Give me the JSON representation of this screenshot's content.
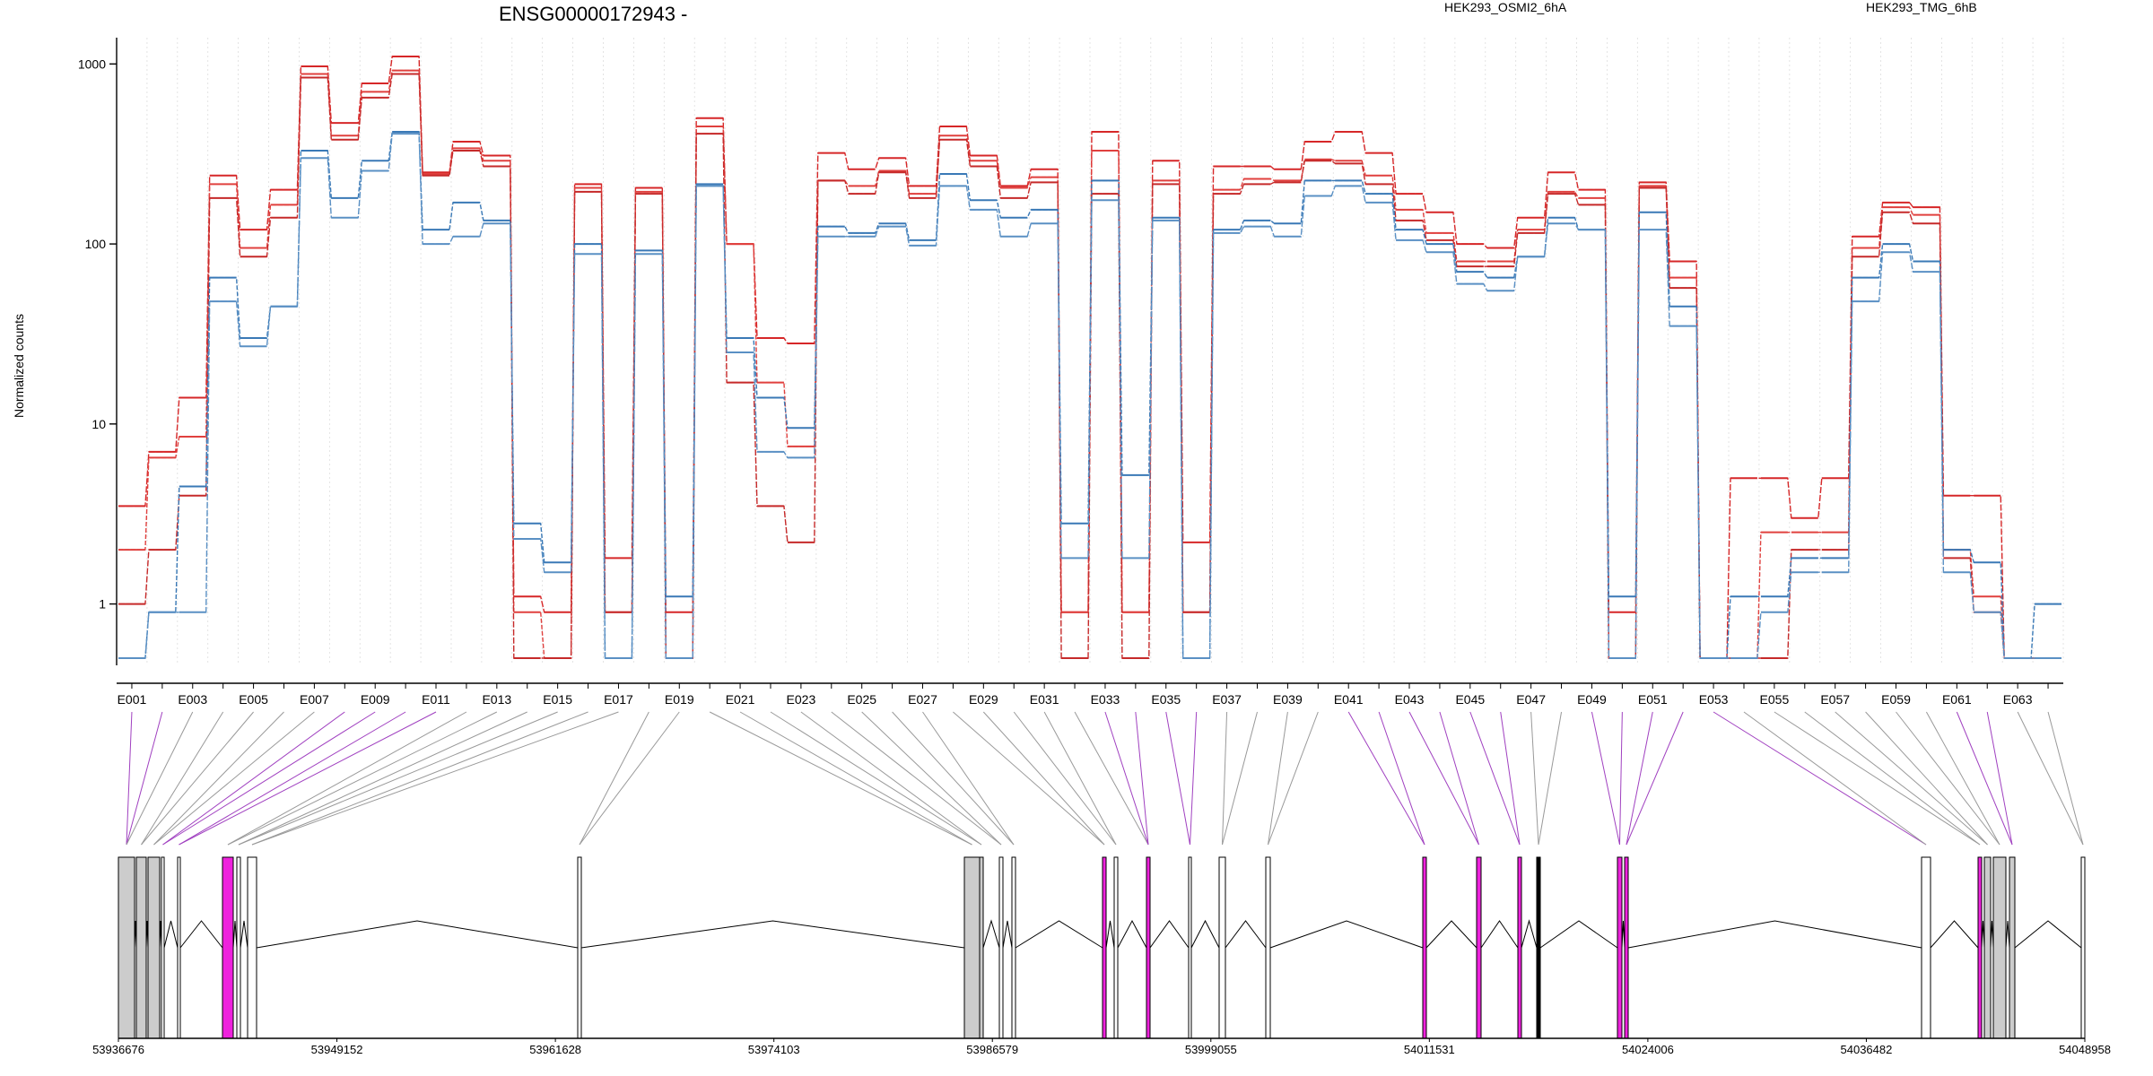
{
  "title": "ENSG00000172943 -",
  "legend": [
    {
      "name": "HEK293_OSMI2_6hA",
      "color": "#d62728"
    },
    {
      "name": "HEK293_TMG_6hB",
      "color": "#3a79b6"
    }
  ],
  "chart_data": {
    "type": "line",
    "title": "ENSG00000172943 -",
    "ylabel": "Normalized counts",
    "xlabel": "",
    "yscale": "log",
    "ylim": [
      0.5,
      1400
    ],
    "yticks": [
      1,
      10,
      100,
      1000
    ],
    "grid": "vertical dotted lines at exon bins",
    "legend_placement": "top (above plot, right half)",
    "exon_labels": [
      "E001",
      "E003",
      "E005",
      "E007",
      "E009",
      "E011",
      "E013",
      "E015",
      "E017",
      "E019",
      "E021",
      "E023",
      "E025",
      "E027",
      "E029",
      "E031",
      "E033",
      "E035",
      "E037",
      "E039",
      "E041",
      "E043",
      "E045",
      "E047",
      "E049",
      "E051",
      "E053",
      "E055",
      "E057",
      "E059",
      "E061",
      "E063"
    ],
    "series": [
      {
        "name": "HEK293_OSMI2_6hA",
        "color": "#d62728",
        "values": [
          3.5,
          7,
          14,
          240,
          120,
          200,
          970,
          470,
          780,
          1100,
          250,
          370,
          310,
          1.1,
          0.9,
          215,
          1.8,
          205,
          0.9,
          500,
          100,
          30,
          28,
          320,
          260,
          300,
          210,
          450,
          310,
          210,
          260,
          0.9,
          420,
          0.9,
          290,
          2.2,
          270,
          270,
          260,
          370,
          420,
          320,
          190,
          150,
          100,
          95,
          140,
          250,
          200,
          0.9,
          220,
          80,
          0.5,
          5,
          5,
          3,
          5,
          110,
          170,
          160,
          4,
          4,
          0.5,
          0.5
        ]
      },
      {
        "name": "HEK293_OSMI2_6hA",
        "color": "#e0403e",
        "values": [
          2,
          6.5,
          8.5,
          215,
          95,
          165,
          880,
          400,
          700,
          920,
          245,
          340,
          290,
          0.9,
          0.5,
          205,
          0.9,
          195,
          0.5,
          450,
          100,
          17,
          7.5,
          225,
          210,
          255,
          190,
          400,
          290,
          205,
          235,
          0.9,
          330,
          0.9,
          225,
          0.9,
          200,
          230,
          225,
          295,
          290,
          240,
          155,
          115,
          80,
          80,
          120,
          195,
          180,
          0.5,
          210,
          65,
          0.5,
          0.5,
          2.5,
          2.5,
          2.5,
          95,
          160,
          145,
          2,
          1.1,
          0.5,
          0.5
        ]
      },
      {
        "name": "HEK293_OSMI2_6hA",
        "color": "#c62a2a",
        "values": [
          1,
          2,
          4,
          180,
          85,
          140,
          840,
          380,
          650,
          880,
          240,
          330,
          270,
          0.5,
          0.5,
          195,
          0.9,
          190,
          0.5,
          410,
          17,
          3.5,
          2.2,
          225,
          190,
          250,
          180,
          380,
          270,
          180,
          220,
          0.5,
          190,
          0.5,
          215,
          0.9,
          190,
          215,
          220,
          290,
          280,
          215,
          135,
          105,
          75,
          75,
          115,
          190,
          165,
          0.5,
          205,
          57,
          0.5,
          0.5,
          0.5,
          2,
          2,
          85,
          150,
          130,
          1.8,
          0.9,
          0.5,
          0.5
        ]
      },
      {
        "name": "HEK293_TMG_6hB",
        "color": "#3a79b6",
        "values": [
          0.5,
          0.9,
          4.5,
          65,
          30,
          45,
          330,
          180,
          290,
          420,
          120,
          170,
          135,
          2.8,
          1.7,
          100,
          0.5,
          92,
          1.1,
          215,
          30,
          14,
          9.5,
          125,
          115,
          130,
          105,
          245,
          175,
          140,
          155,
          2.8,
          225,
          5.2,
          140,
          0.5,
          120,
          135,
          130,
          225,
          225,
          190,
          120,
          100,
          70,
          65,
          85,
          140,
          120,
          1.1,
          150,
          45,
          0.5,
          1.1,
          1.1,
          1.8,
          1.8,
          65,
          100,
          80,
          2,
          1.7,
          0.5,
          1
        ]
      },
      {
        "name": "HEK293_TMG_6hB",
        "color": "#5a90c4",
        "values": [
          0.5,
          0.9,
          0.9,
          48,
          27,
          45,
          300,
          140,
          255,
          410,
          100,
          110,
          130,
          2.3,
          1.5,
          88,
          0.5,
          88,
          0.5,
          210,
          25,
          7,
          6.5,
          110,
          110,
          125,
          98,
          210,
          155,
          110,
          130,
          1.8,
          175,
          1.8,
          135,
          0.5,
          115,
          125,
          110,
          185,
          210,
          170,
          105,
          90,
          60,
          55,
          85,
          130,
          120,
          0.5,
          120,
          35,
          0.5,
          0.5,
          0.9,
          1.5,
          1.5,
          48,
          90,
          70,
          1.5,
          0.9,
          0.5,
          0.5
        ]
      }
    ],
    "genomic_axis": {
      "tick_labels": [
        "53936676",
        "53949152",
        "53961628",
        "53974103",
        "53986579",
        "53999055",
        "54011531",
        "54024006",
        "54036482",
        "54048958"
      ]
    }
  }
}
